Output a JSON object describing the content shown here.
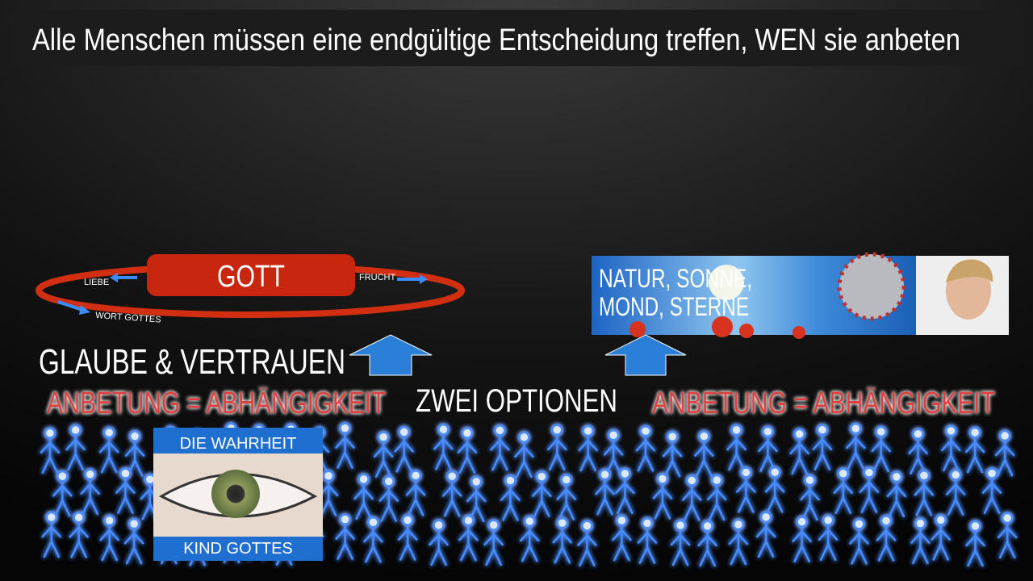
{
  "header": {
    "title": "Alle Menschen müssen eine endgültige Entscheidung treffen, WEN sie anbeten"
  },
  "left": {
    "god": "GOTT",
    "cycle": [
      "LIEBE",
      "FRUCHT",
      "WORT GOTTES"
    ],
    "arrow_label": "GLAUBE & VERTRAUEN",
    "worship": "ANBETUNG = ABHÄNGIGKEIT",
    "image": {
      "top": "DIE WAHRHEIT",
      "bottom": "KIND GOTTES"
    }
  },
  "center": {
    "label": "ZWEI OPTIONEN"
  },
  "right": {
    "image_lines": [
      "NATUR, SONNE,",
      "MOND, STERNE"
    ],
    "worship": "ANBETUNG = ABHÄNGIGKEIT"
  }
}
